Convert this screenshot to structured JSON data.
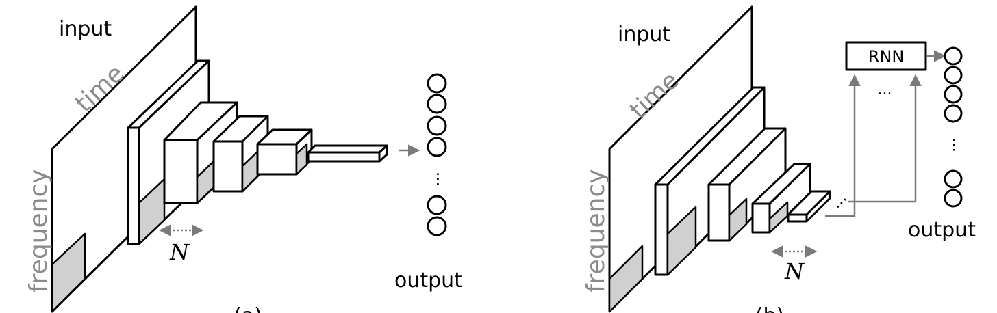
{
  "left_panel": {
    "input_label": "input",
    "time_label": "time",
    "frequency_label": "frequency",
    "n_label": "N",
    "output_label": "output",
    "ellipsis": "…",
    "subfigure_label": "(a)"
  },
  "right_panel": {
    "input_label": "input",
    "time_label": "time",
    "frequency_label": "frequency",
    "n_label": "N",
    "output_label": "output",
    "rnn_label": "RNN",
    "rnn_dots": "...",
    "ellipsis": "…",
    "subfigure_label": "(b)"
  },
  "colors": {
    "arrow_gray": "#7a7a7a",
    "shade_gray": "#d0d0d0",
    "label_gray": "#8a8a8a"
  }
}
